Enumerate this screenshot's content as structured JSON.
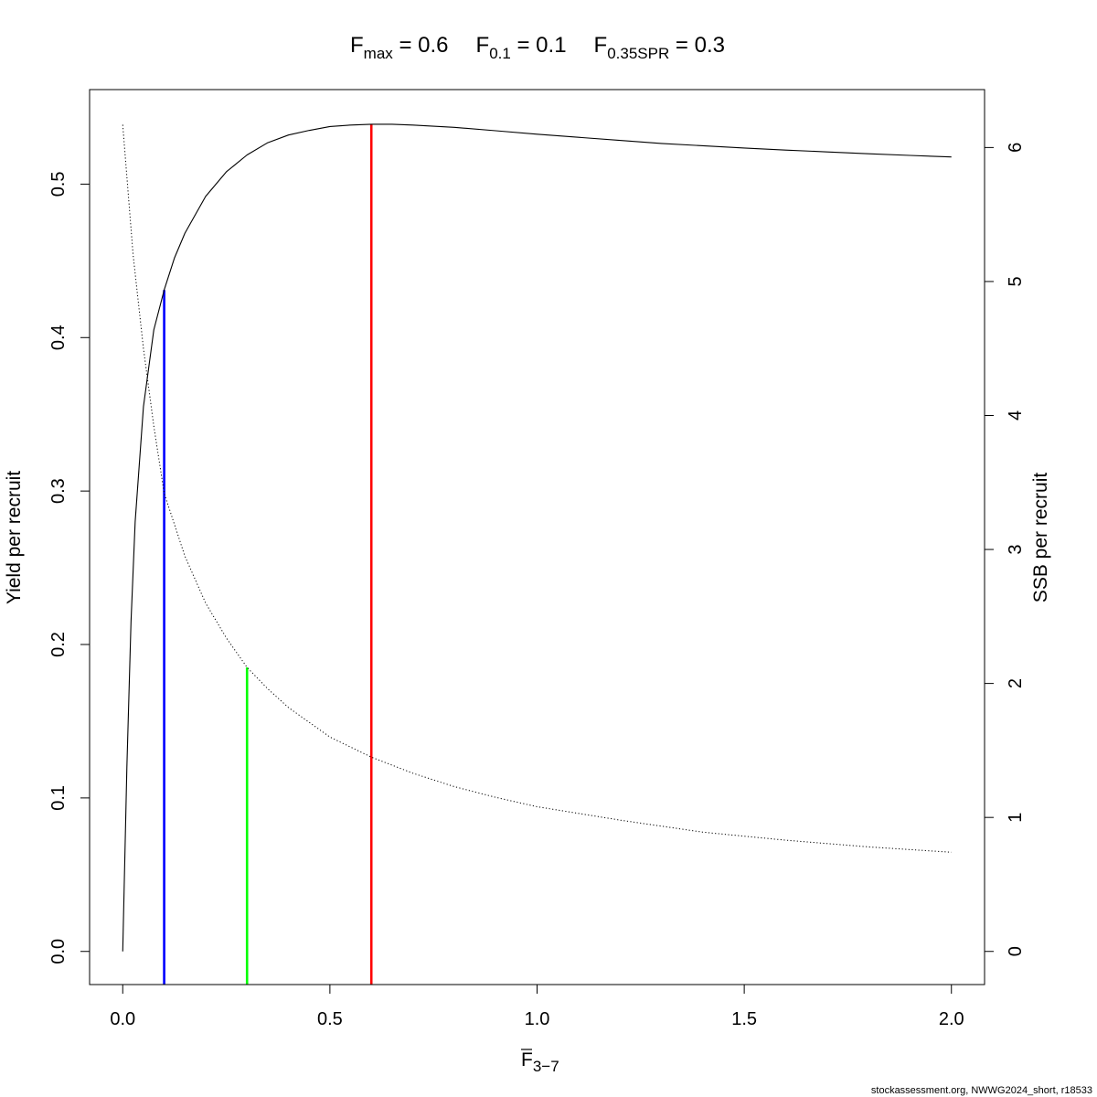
{
  "chart_data": {
    "type": "line",
    "title": {
      "parts": [
        {
          "main": "F",
          "sub": "max",
          "rest": " = 0.6"
        },
        {
          "main": "F",
          "sub": "0.1",
          "rest": " = 0.1"
        },
        {
          "main": "F",
          "sub": "0.35SPR",
          "rest": " = 0.3"
        }
      ]
    },
    "xlabel": {
      "main": "F",
      "overbar": true,
      "sub": "3−7"
    },
    "ylabel": "Yield per recruit",
    "y2label": "SSB per recruit",
    "xlim": [
      -0.08,
      2.08
    ],
    "ylim": [
      -0.0216,
      0.5616
    ],
    "y2lim": [
      -0.2474,
      6.4324
    ],
    "x_ticks": [
      {
        "value": 0.0,
        "label": "0.0"
      },
      {
        "value": 0.5,
        "label": "0.5"
      },
      {
        "value": 1.0,
        "label": "1.0"
      },
      {
        "value": 1.5,
        "label": "1.5"
      },
      {
        "value": 2.0,
        "label": "2.0"
      }
    ],
    "y_ticks": [
      {
        "value": 0.0,
        "label": "0.0"
      },
      {
        "value": 0.1,
        "label": "0.1"
      },
      {
        "value": 0.2,
        "label": "0.2"
      },
      {
        "value": 0.3,
        "label": "0.3"
      },
      {
        "value": 0.4,
        "label": "0.4"
      },
      {
        "value": 0.5,
        "label": "0.5"
      }
    ],
    "y2_ticks": [
      {
        "value": 0,
        "label": "0"
      },
      {
        "value": 1,
        "label": "1"
      },
      {
        "value": 2,
        "label": "2"
      },
      {
        "value": 3,
        "label": "3"
      },
      {
        "value": 4,
        "label": "4"
      },
      {
        "value": 5,
        "label": "5"
      },
      {
        "value": 6,
        "label": "6"
      }
    ],
    "series": [
      {
        "axis": "left",
        "style": "solid",
        "color": "#000000",
        "x": [
          0,
          0.01,
          0.02,
          0.03,
          0.05,
          0.075,
          0.1,
          0.125,
          0.15,
          0.2,
          0.25,
          0.3,
          0.35,
          0.4,
          0.45,
          0.5,
          0.55,
          0.6,
          0.65,
          0.7,
          0.8,
          0.9,
          1.0,
          1.1,
          1.2,
          1.3,
          1.4,
          1.5,
          1.6,
          1.7,
          1.8,
          1.9,
          2.0
        ],
        "y": [
          0.0,
          0.12,
          0.215,
          0.28,
          0.355,
          0.405,
          0.431,
          0.452,
          0.468,
          0.492,
          0.508,
          0.519,
          0.527,
          0.532,
          0.535,
          0.5375,
          0.5385,
          0.539,
          0.539,
          0.5385,
          0.537,
          0.5348,
          0.5325,
          0.5305,
          0.5285,
          0.5265,
          0.525,
          0.5235,
          0.5222,
          0.521,
          0.5198,
          0.5187,
          0.5177
        ]
      },
      {
        "axis": "right",
        "style": "dotted",
        "color": "#000000",
        "x": [
          0,
          0.025,
          0.05,
          0.075,
          0.1,
          0.15,
          0.2,
          0.25,
          0.3,
          0.35,
          0.4,
          0.5,
          0.6,
          0.7,
          0.8,
          0.9,
          1.0,
          1.2,
          1.4,
          1.6,
          1.8,
          2.0
        ],
        "y": [
          6.17,
          5.2,
          4.5,
          3.92,
          3.42,
          2.95,
          2.6,
          2.34,
          2.12,
          1.96,
          1.82,
          1.6,
          1.45,
          1.33,
          1.23,
          1.15,
          1.08,
          0.98,
          0.89,
          0.83,
          0.78,
          0.74
        ]
      }
    ],
    "reference_lines": [
      {
        "name": "F0.1",
        "x": 0.1,
        "color": "#0000ff",
        "ymin": -0.0216,
        "ymax": 0.431
      },
      {
        "name": "F0.35SPR",
        "x": 0.3,
        "color": "#00ff00",
        "ymin": -0.0216,
        "ymax": 0.185
      },
      {
        "name": "Fmax",
        "x": 0.6,
        "color": "#ff0000",
        "ymin": -0.0216,
        "ymax": 0.539
      }
    ],
    "grid": false,
    "legend": "none"
  },
  "credit": "stockassessment.org, NWWG2024_short, r18533"
}
